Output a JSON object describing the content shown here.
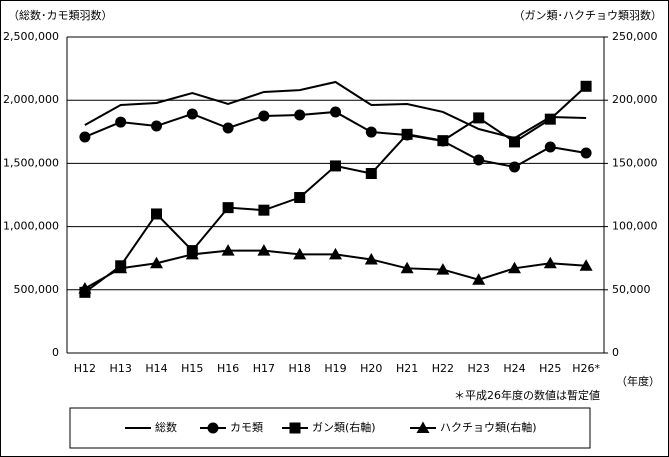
{
  "chart_data": {
    "type": "line",
    "y_label": "（総数･カモ類羽数）",
    "y2_label": "（ガン類･ハクチョウ類羽数）",
    "x_label": "（年度）",
    "note": "＊平成26年度の数値は暫定値",
    "categories": [
      "H12",
      "H13",
      "H14",
      "H15",
      "H16",
      "H17",
      "H18",
      "H19",
      "H20",
      "H21",
      "H22",
      "H23",
      "H24",
      "H25",
      "H26*"
    ],
    "series": [
      {
        "name": "総数",
        "color": "#000000",
        "marker": "none",
        "values": [
          1804000,
          1962000,
          1978000,
          2057000,
          1970000,
          2065000,
          2080000,
          2144000,
          1962000,
          1970000,
          1907000,
          1772000,
          1700000,
          1867000,
          1859000
        ]
      },
      {
        "name": "カモ類",
        "color": "#000000",
        "marker": "circle",
        "values": [
          1709000,
          1827000,
          1796000,
          1891000,
          1780000,
          1875000,
          1883000,
          1907000,
          1748000,
          1725000,
          1677000,
          1527000,
          1472000,
          1630000,
          1582000
        ]
      },
      {
        "name": "ガン類(右軸)",
        "color": "#000000",
        "marker": "square",
        "axis": "y2",
        "values": [
          48000,
          69000,
          110000,
          81000,
          115000,
          113000,
          123000,
          148000,
          142000,
          173000,
          168000,
          186000,
          167000,
          185000,
          211000
        ]
      },
      {
        "name": "ハクチョウ類(右軸)",
        "color": "#000000",
        "marker": "triangle",
        "axis": "y2",
        "values": [
          51000,
          67000,
          71000,
          78000,
          81000,
          81000,
          78000,
          78000,
          74000,
          67000,
          66000,
          58000,
          67000,
          71000,
          69000
        ]
      }
    ],
    "ylim": [
      0,
      2500000
    ],
    "yticks": [
      0,
      {
        "value": 500000,
        "label": "500,000"
      },
      {
        "value": 1000000,
        "label": "1,000,000"
      },
      {
        "value": 1500000,
        "label": "1,500,000"
      },
      {
        "value": 2000000,
        "label": "2,000,000"
      },
      {
        "value": 2500000,
        "label": "2,500,000"
      }
    ],
    "y2lim": [
      0,
      250000
    ],
    "y2ticks": [
      0,
      {
        "value": 50000,
        "label": "50,000"
      },
      {
        "value": 100000,
        "label": "100,000"
      },
      {
        "value": 150000,
        "label": "150,000"
      },
      {
        "value": 200000,
        "label": "200,000"
      },
      {
        "value": 250000,
        "label": "250,000"
      }
    ],
    "grid": true
  }
}
